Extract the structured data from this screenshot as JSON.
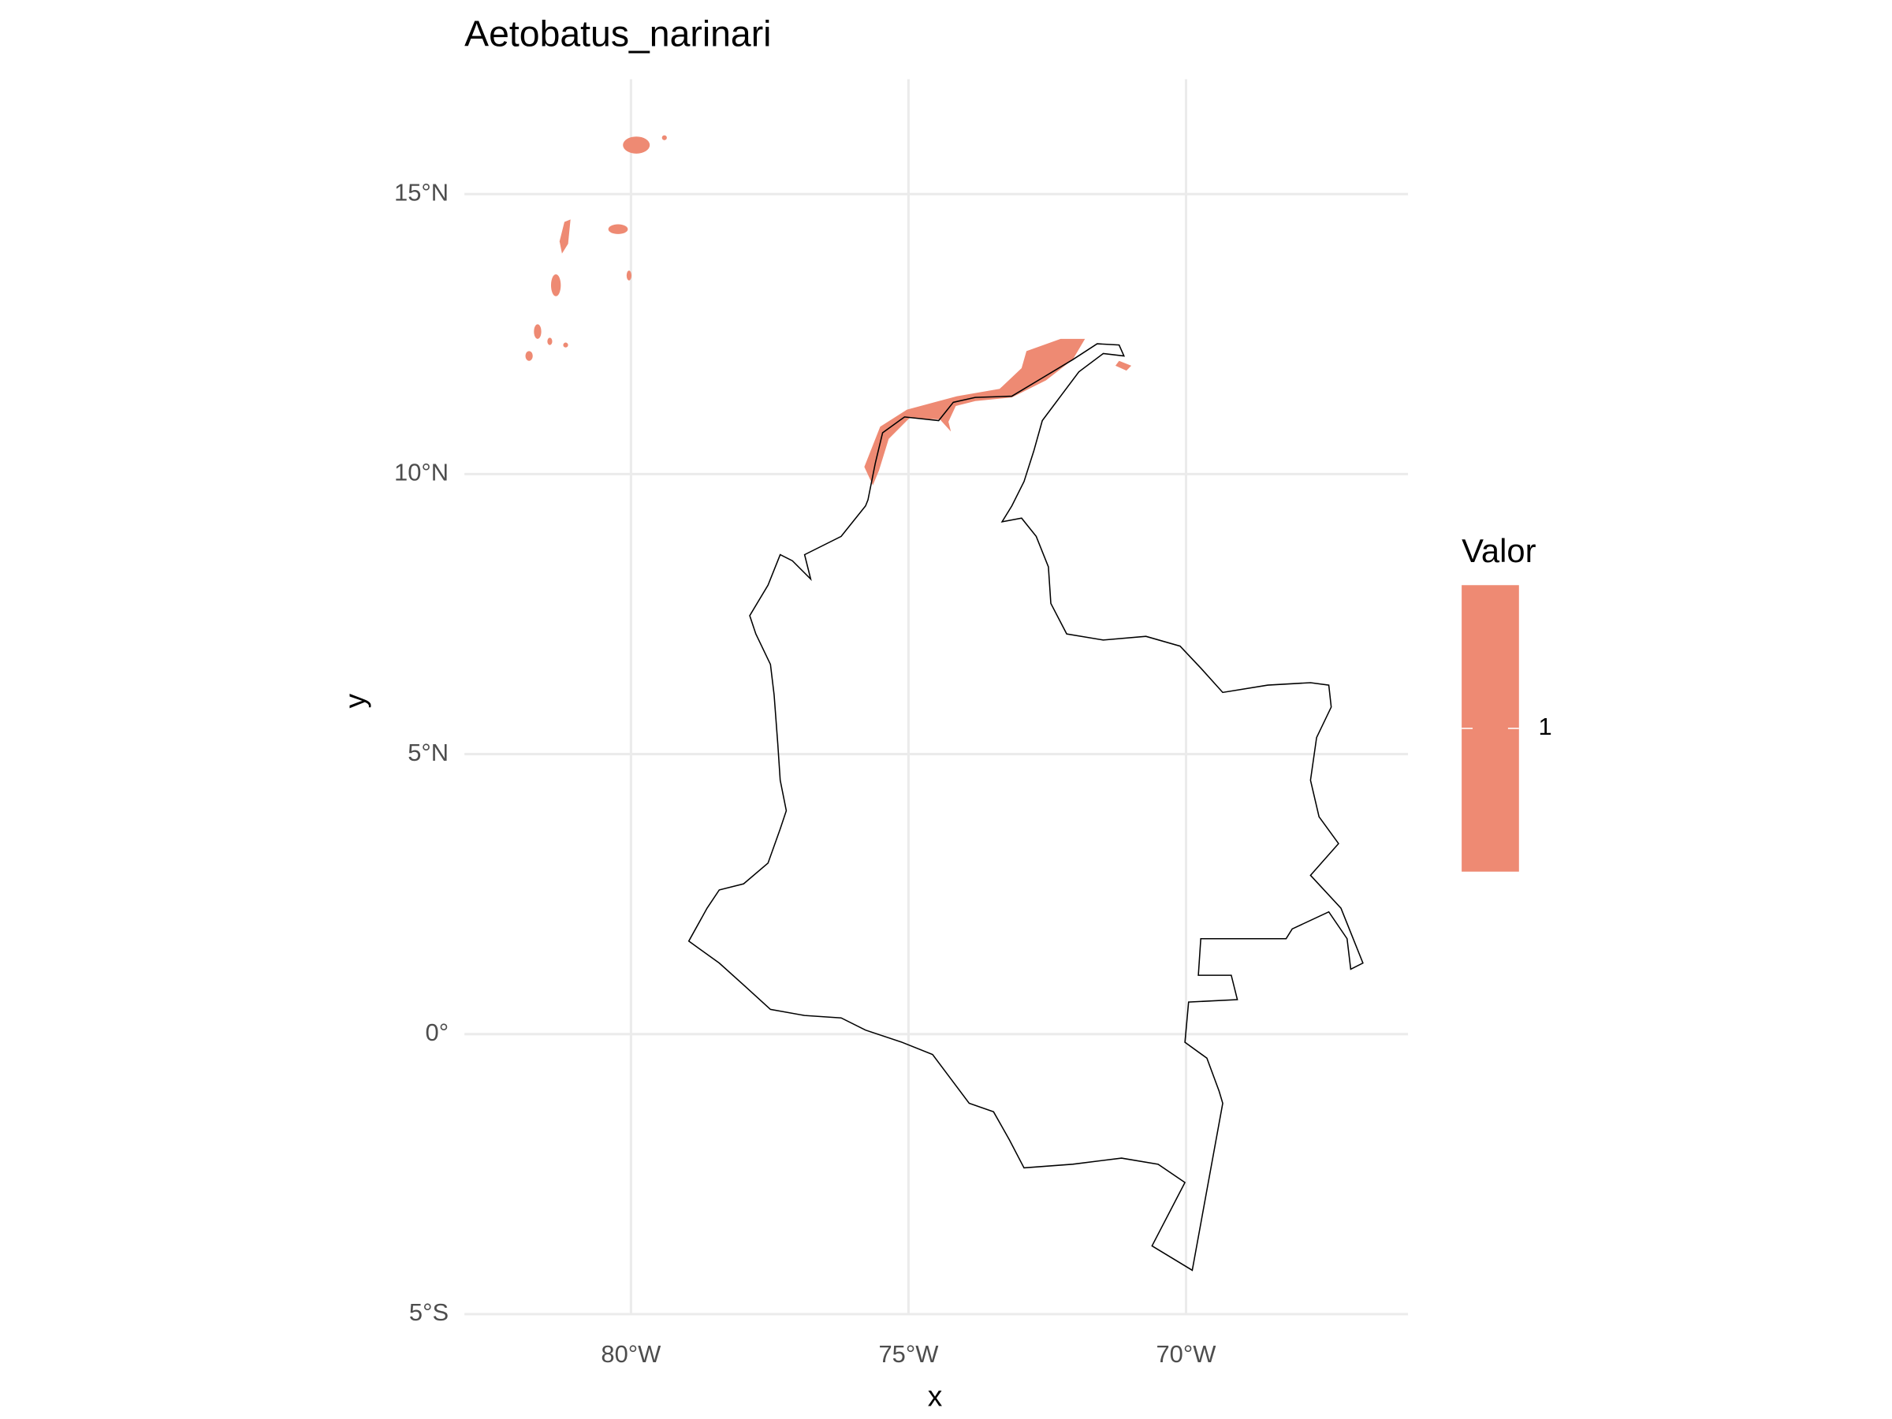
{
  "chart_data": {
    "type": "map",
    "title": "Aetobatus_narinari",
    "x_label": "x",
    "y_label": "y",
    "xlim": [
      -83.0,
      -66.0
    ],
    "ylim": [
      -5.0,
      17.05
    ],
    "xticks": [
      {
        "value": -80,
        "label": "80°W"
      },
      {
        "value": -75,
        "label": "75°W"
      },
      {
        "value": -70,
        "label": "70°W"
      }
    ],
    "yticks": [
      {
        "value": -5,
        "label": "5°S"
      },
      {
        "value": 0,
        "label": "0°"
      },
      {
        "value": 5,
        "label": "5°N"
      },
      {
        "value": 10,
        "label": "10°N"
      },
      {
        "value": 15,
        "label": "15°N"
      }
    ],
    "grid": true,
    "legend": {
      "title": "Valor",
      "ticks": [
        1
      ],
      "color": "#ee8a73"
    }
  }
}
